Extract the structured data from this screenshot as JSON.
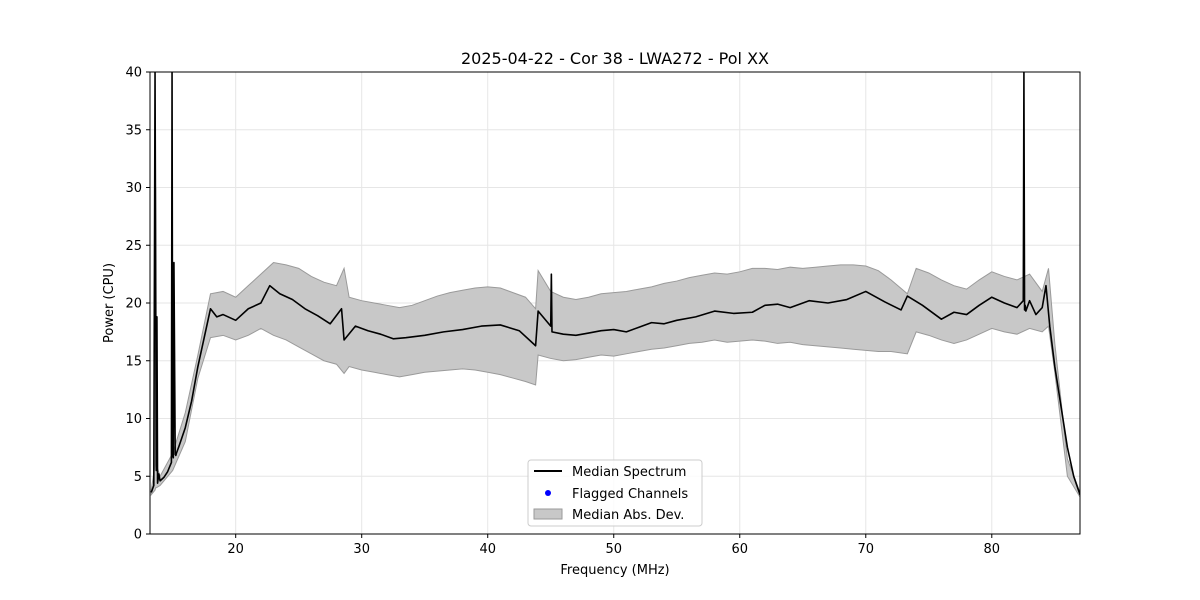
{
  "chart_data": {
    "type": "line",
    "title": "2025-04-22 - Cor 38 - LWA272 - Pol XX",
    "xlabel": "Frequency (MHz)",
    "ylabel": "Power (CPU)",
    "xlim": [
      13.2,
      87.0
    ],
    "ylim": [
      0,
      40
    ],
    "xticks": [
      20,
      30,
      40,
      50,
      60,
      70,
      80
    ],
    "yticks": [
      0,
      5,
      10,
      15,
      20,
      25,
      30,
      35,
      40
    ],
    "grid": true,
    "legend_position": "lower-center",
    "colors": {
      "median": "#000000",
      "flagged": "#0000ff",
      "band_fill": "#c8c8c8",
      "band_edge": "#9a9a9a",
      "grid": "#e6e6e6"
    },
    "legend": [
      {
        "label": "Median Spectrum",
        "marker": "line"
      },
      {
        "label": "Flagged Channels",
        "marker": "dot"
      },
      {
        "label": "Median Abs. Dev.",
        "marker": "patch"
      }
    ],
    "series": [
      {
        "name": "Median Spectrum",
        "x": [
          13.3,
          13.5,
          13.6,
          13.7,
          13.75,
          13.8,
          13.9,
          14.0,
          14.3,
          14.6,
          14.9,
          14.95,
          15.0,
          15.05,
          15.1,
          15.2,
          15.25,
          15.3,
          15.5,
          16.0,
          16.5,
          17.0,
          17.5,
          18.0,
          18.5,
          19.0,
          20.0,
          21.0,
          22.0,
          22.7,
          23.5,
          24.5,
          25.5,
          26.5,
          27.5,
          28.4,
          28.6,
          29.5,
          30.5,
          31.5,
          32.5,
          33.5,
          35.0,
          36.5,
          38.0,
          39.5,
          41.0,
          42.5,
          43.8,
          44.0,
          45.0,
          45.05,
          45.1,
          46.0,
          47.0,
          48.0,
          49.0,
          50.0,
          51.0,
          52.0,
          53.0,
          54.0,
          55.0,
          56.5,
          58.0,
          59.5,
          61.0,
          62.0,
          63.0,
          64.0,
          65.5,
          67.0,
          68.5,
          70.0,
          71.5,
          72.8,
          73.3,
          74.5,
          76.0,
          77.0,
          78.0,
          79.0,
          80.0,
          81.0,
          82.0,
          82.5,
          82.55,
          82.6,
          82.65,
          82.7,
          83.0,
          83.5,
          84.0,
          84.3,
          84.6,
          85.0,
          85.5,
          86.0,
          86.5,
          87.0
        ],
        "y": [
          3.6,
          4.2,
          40.0,
          5.5,
          18.8,
          4.4,
          5.2,
          4.6,
          4.9,
          5.4,
          6.2,
          40.0,
          6.8,
          6.6,
          23.5,
          6.9,
          6.8,
          7.0,
          7.6,
          9.2,
          11.5,
          14.5,
          17.0,
          19.5,
          18.8,
          19.0,
          18.5,
          19.5,
          20.0,
          21.5,
          20.8,
          20.3,
          19.5,
          18.9,
          18.2,
          19.5,
          16.8,
          18.0,
          17.6,
          17.3,
          16.9,
          17.0,
          17.2,
          17.5,
          17.7,
          18.0,
          18.1,
          17.6,
          16.3,
          19.3,
          18.0,
          22.5,
          17.5,
          17.3,
          17.2,
          17.4,
          17.6,
          17.7,
          17.5,
          17.9,
          18.3,
          18.2,
          18.5,
          18.8,
          19.3,
          19.1,
          19.2,
          19.8,
          19.9,
          19.6,
          20.2,
          20.0,
          20.3,
          21.0,
          20.1,
          19.4,
          20.6,
          19.8,
          18.6,
          19.2,
          19.0,
          19.8,
          20.5,
          20.0,
          19.6,
          20.2,
          40.0,
          19.4,
          19.8,
          19.3,
          20.2,
          19.0,
          19.6,
          21.5,
          18.0,
          14.5,
          11.0,
          7.5,
          5.0,
          3.4
        ]
      },
      {
        "name": "Median Abs. Dev.",
        "x": [
          13.3,
          13.6,
          13.65,
          13.7,
          14.0,
          15.0,
          16.0,
          17.0,
          18.0,
          19.0,
          20.0,
          21.0,
          22.0,
          23.0,
          24.0,
          25.0,
          26.0,
          27.0,
          28.0,
          28.6,
          29.0,
          30.0,
          31.0,
          32.0,
          33.0,
          34.0,
          35.0,
          36.0,
          37.0,
          38.0,
          39.0,
          40.0,
          41.0,
          42.0,
          43.0,
          43.8,
          44.0,
          45.0,
          46.0,
          47.0,
          48.0,
          49.0,
          50.0,
          51.0,
          52.0,
          53.0,
          54.0,
          55.0,
          56.0,
          57.0,
          58.0,
          59.0,
          60.0,
          61.0,
          62.0,
          63.0,
          64.0,
          65.0,
          66.0,
          67.0,
          68.0,
          69.0,
          70.0,
          71.0,
          72.0,
          73.3,
          74.0,
          75.0,
          76.0,
          77.0,
          78.0,
          79.0,
          80.0,
          81.0,
          82.0,
          83.0,
          84.0,
          84.5,
          85.0,
          86.0,
          87.0
        ],
        "upper": [
          3.8,
          6.0,
          30.0,
          6.0,
          5.0,
          7.0,
          10.5,
          15.5,
          20.8,
          21.0,
          20.5,
          21.5,
          22.5,
          23.5,
          23.3,
          23.0,
          22.3,
          21.8,
          21.5,
          23.0,
          20.5,
          20.2,
          20.0,
          19.8,
          19.6,
          19.8,
          20.2,
          20.6,
          20.9,
          21.1,
          21.3,
          21.4,
          21.3,
          20.9,
          20.5,
          19.5,
          22.8,
          21.0,
          20.5,
          20.3,
          20.5,
          20.8,
          20.9,
          21.0,
          21.2,
          21.4,
          21.7,
          21.9,
          22.2,
          22.4,
          22.6,
          22.5,
          22.7,
          23.0,
          23.0,
          22.9,
          23.1,
          23.0,
          23.1,
          23.2,
          23.3,
          23.3,
          23.2,
          22.8,
          22.0,
          20.8,
          23.0,
          22.6,
          22.0,
          21.5,
          21.2,
          22.0,
          22.7,
          22.3,
          22.0,
          22.5,
          21.0,
          23.0,
          16.5,
          6.5,
          3.6
        ],
        "lower": [
          3.4,
          3.8,
          4.0,
          4.0,
          4.2,
          5.5,
          8.0,
          13.5,
          17.0,
          17.2,
          16.8,
          17.2,
          17.8,
          17.2,
          16.8,
          16.2,
          15.6,
          15.0,
          14.7,
          13.9,
          14.5,
          14.2,
          14.0,
          13.8,
          13.6,
          13.8,
          14.0,
          14.1,
          14.2,
          14.3,
          14.2,
          14.0,
          13.8,
          13.5,
          13.2,
          12.9,
          15.5,
          15.2,
          15.0,
          15.1,
          15.3,
          15.5,
          15.4,
          15.6,
          15.8,
          16.0,
          16.1,
          16.3,
          16.5,
          16.6,
          16.8,
          16.6,
          16.7,
          16.8,
          16.7,
          16.5,
          16.6,
          16.4,
          16.3,
          16.2,
          16.1,
          16.0,
          15.9,
          15.8,
          15.8,
          15.6,
          17.5,
          17.2,
          16.8,
          16.5,
          16.8,
          17.3,
          17.8,
          17.5,
          17.3,
          17.8,
          17.5,
          18.0,
          14.0,
          5.0,
          3.2
        ]
      },
      {
        "name": "Flagged Channels",
        "x": [],
        "y": []
      }
    ]
  }
}
